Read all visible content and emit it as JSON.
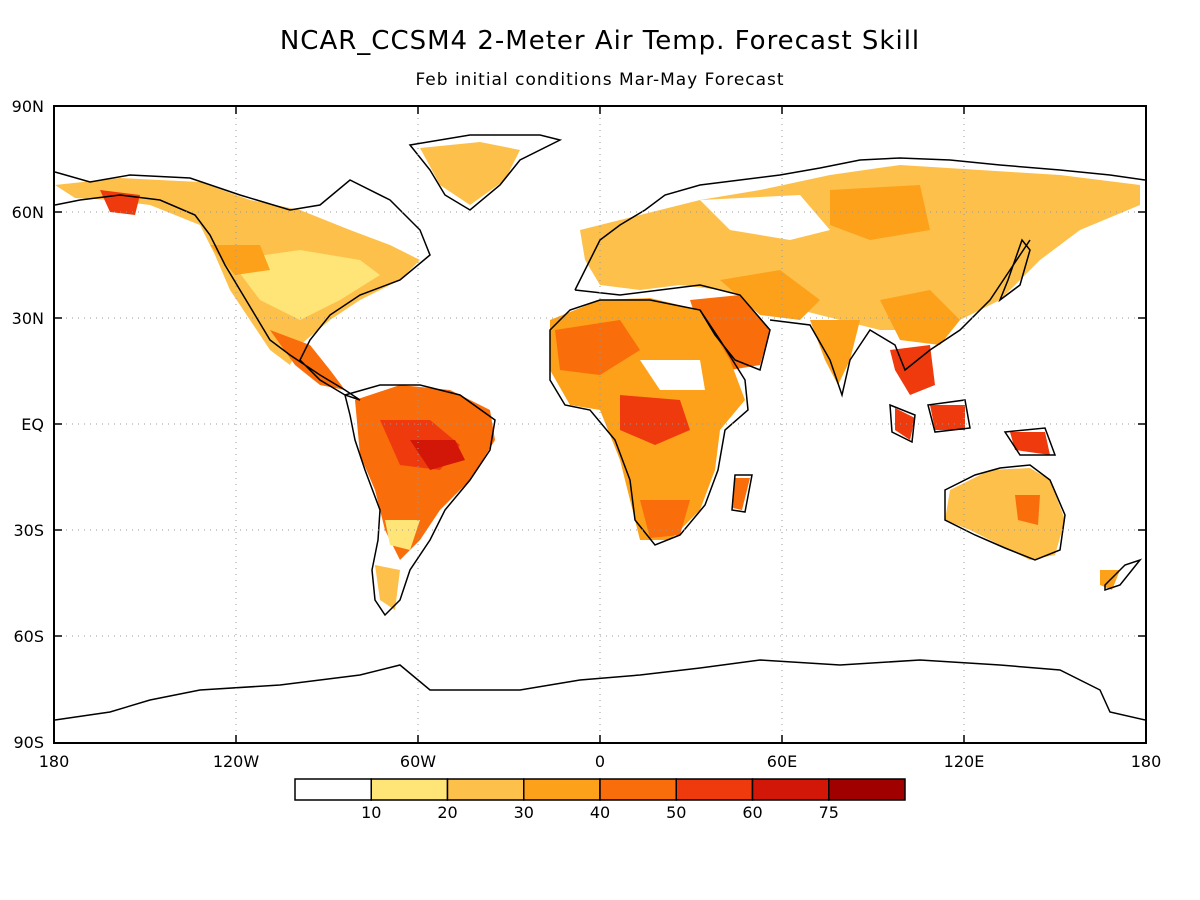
{
  "title": "NCAR_CCSM4 2-Meter Air Temp. Forecast Skill",
  "subtitle": "Feb initial conditions  Mar-May Forecast",
  "map": {
    "projection": "cylindrical equidistant",
    "lat_labels": [
      "90N",
      "60N",
      "30N",
      "EQ",
      "30S",
      "60S",
      "90S"
    ],
    "lon_labels": [
      "180",
      "120W",
      "60W",
      "0",
      "60E",
      "120E",
      "180"
    ],
    "grid": "dotted",
    "colors": {
      "coastline": "#000000",
      "grid": "#999999"
    }
  },
  "legend": {
    "bins": [
      {
        "color": "#ffffff"
      },
      {
        "color": "#ffe577"
      },
      {
        "color": "#fdc04a"
      },
      {
        "color": "#fca119"
      },
      {
        "color": "#f96d0a"
      },
      {
        "color": "#ef3a0d"
      },
      {
        "color": "#d21608"
      },
      {
        "color": "#a00000"
      }
    ],
    "thresholds": [
      "10",
      "20",
      "30",
      "40",
      "50",
      "60",
      "75"
    ]
  }
}
